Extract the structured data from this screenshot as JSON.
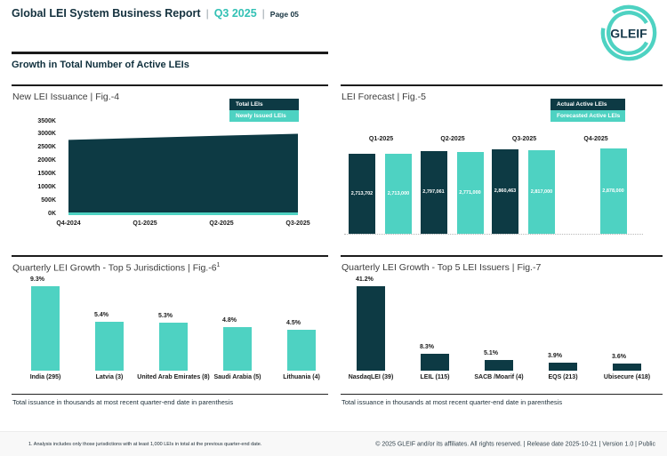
{
  "colors": {
    "dark": "#0D3A44",
    "teal": "#4ED2C2",
    "teal_dark_text": "#33C1B5"
  },
  "header": {
    "title": "Global LEI System Business Report",
    "sep": "|",
    "period": "Q3 2025",
    "page_label": "Page 05",
    "logo_text": "GLEIF"
  },
  "section_title": "Growth in Total Number of Active LEIs",
  "fig4": {
    "title": "New LEI Issuance | Fig.-4",
    "legend": [
      "Total LEIs",
      "Newly Issued LEIs"
    ],
    "y_ticks": [
      "3500K",
      "3000K",
      "2500K",
      "2000K",
      "1500K",
      "1000K",
      "500K",
      "0K"
    ],
    "chart_data": {
      "type": "area",
      "x": [
        "Q4-2024",
        "Q1-2025",
        "Q2-2025",
        "Q3-2025"
      ],
      "series": [
        {
          "name": "Total LEIs",
          "estimated_values_K": [
            2820,
            2900,
            2980,
            3050
          ]
        },
        {
          "name": "Newly Issued LEIs",
          "estimated_values_K": [
            90,
            90,
            90,
            90
          ]
        }
      ],
      "ylabel_unit": "K",
      "ylim_K": [
        0,
        3500
      ],
      "grid": false,
      "legend_position": "top-right"
    }
  },
  "fig5": {
    "title": "LEI Forecast | Fig.-5",
    "legend": [
      "Actual Active LEIs",
      "Forecasted Active LEIs"
    ],
    "chart_data": {
      "type": "bar",
      "categories": [
        "Q1-2025",
        "Q2-2025",
        "Q3-2025",
        "Q4-2025"
      ],
      "series": [
        {
          "name": "Actual Active LEIs",
          "color": "dark",
          "values": [
            2713702,
            2797061,
            2860463,
            null
          ],
          "labels": [
            "2,713,702",
            "2,797,061",
            "2,860,463",
            null
          ]
        },
        {
          "name": "Forecasted Active LEIs",
          "color": "teal",
          "values": [
            2713000,
            2771000,
            2817000,
            2878000
          ],
          "labels": [
            "2,713,000",
            "2,771,000",
            "2,817,000",
            "2,878,000"
          ]
        }
      ],
      "value_labels_inside_bars": true,
      "legend_position": "top-right",
      "grid": false
    }
  },
  "fig6": {
    "title": "Quarterly LEI Growth - Top 5 Jurisdictions | Fig.-6",
    "title_sup": "1",
    "note": "Total issuance in thousands at most recent quarter-end date in parenthesis",
    "chart_data": {
      "type": "bar",
      "categories": [
        "India (295)",
        "Latvia (3)",
        "United Arab Emirates (8)",
        "Saudi Arabia (5)",
        "Lithuania (4)"
      ],
      "values": [
        9.3,
        5.4,
        5.3,
        4.8,
        4.5
      ],
      "labels": [
        "9.3%",
        "5.4%",
        "5.3%",
        "4.8%",
        "4.5%"
      ],
      "bar_color": "teal",
      "grid": false
    }
  },
  "fig7": {
    "title": "Quarterly LEI Growth - Top 5 LEI Issuers | Fig.-7",
    "note": "Total issuance in thousands at most recent quarter-end date in parenthesis",
    "chart_data": {
      "type": "bar",
      "categories": [
        "NasdaqLEI (39)",
        "LEIL (115)",
        "SACB /Moarif (4)",
        "EQS (213)",
        "Ubisecure (418)"
      ],
      "values": [
        41.2,
        8.3,
        5.1,
        3.9,
        3.6
      ],
      "labels": [
        "41.2%",
        "8.3%",
        "5.1%",
        "3.9%",
        "3.6%"
      ],
      "bar_color": "dark",
      "grid": false
    }
  },
  "footer": {
    "footnote": "1. Analysis includes only those jurisdictions with at least 1,000 LEIs in total at the previous quarter-end date.",
    "copyright": "© 2025 GLEIF and/or its affiliates. All rights reserved. | Release date 2025-10-21 | Version 1.0 | Public"
  }
}
